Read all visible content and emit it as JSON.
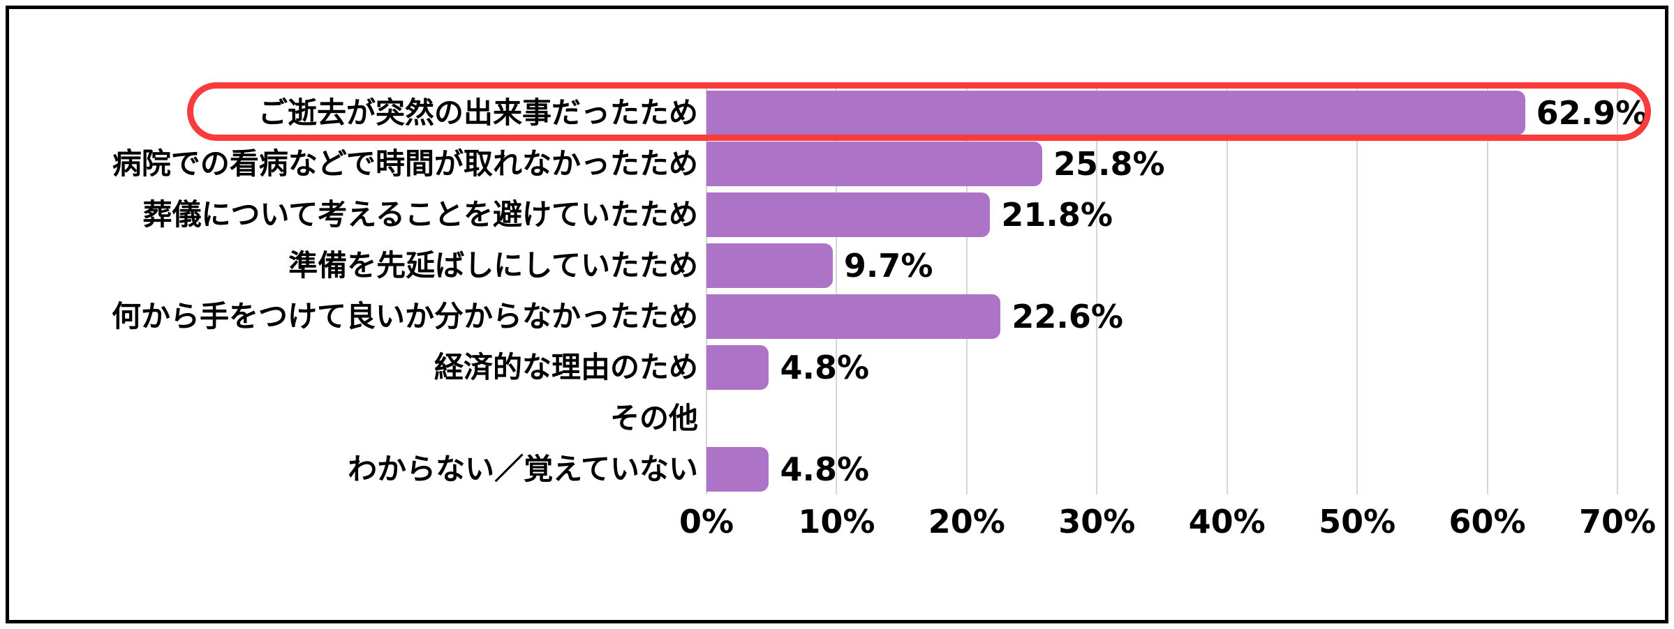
{
  "chart_data": {
    "type": "bar",
    "orientation": "horizontal",
    "title": "",
    "xlabel": "",
    "ylabel": "",
    "categories": [
      "ご逝去が突然の出来事だったため",
      "病院での看病などで時間が取れなかったため",
      "葬儀について考えることを避けていたため",
      "準備を先延ばしにしていたため",
      "何から手をつけて良いか分からなかったため",
      "経済的な理由のため",
      "その他",
      "わからない／覚えていない"
    ],
    "values": [
      62.9,
      25.8,
      21.8,
      9.7,
      22.6,
      4.8,
      0,
      4.8
    ],
    "value_labels": [
      "62.9%",
      "25.8%",
      "21.8%",
      "9.7%",
      "22.6%",
      "4.8%",
      "",
      "4.8%"
    ],
    "x_ticks": [
      "0%",
      "10%",
      "20%",
      "30%",
      "40%",
      "50%",
      "60%",
      "70%"
    ],
    "xlim": [
      0,
      70
    ],
    "grid": "vertical gridlines only",
    "legend": "none",
    "highlight": {
      "index": 0,
      "style": "red rounded outline around label, bar and value"
    },
    "colors": {
      "bar": "#ac73c6",
      "highlight_outline": "#fa3b3c",
      "gridline": "#d6d6d6",
      "text": "#000000",
      "frame_border": "#000000",
      "background": "#ffffff"
    }
  }
}
